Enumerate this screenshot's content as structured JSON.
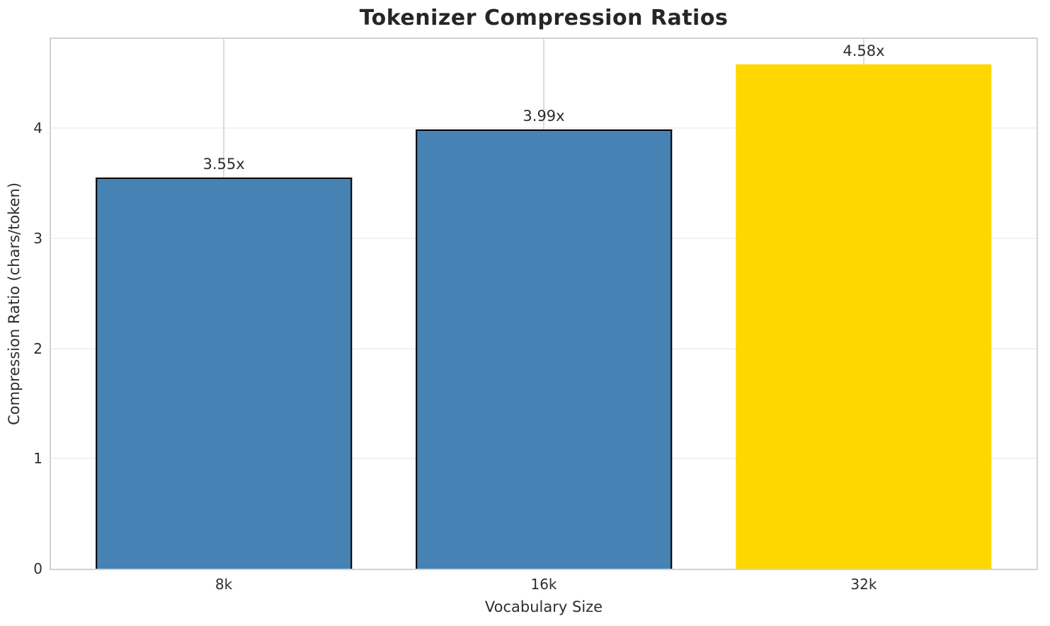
{
  "title": "Tokenizer Compression Ratios",
  "chart_data": {
    "type": "bar",
    "title": "Tokenizer Compression Ratios",
    "xlabel": "Vocabulary Size",
    "ylabel": "Compression Ratio (chars/token)",
    "categories": [
      "8k",
      "16k",
      "32k"
    ],
    "values": [
      3.55,
      3.99,
      4.58
    ],
    "bar_labels": [
      "3.55x",
      "3.99x",
      "4.58x"
    ],
    "bar_colors": [
      "#4682B4",
      "#4682B4",
      "#FFD700"
    ],
    "bar_edge_colors": [
      "#000000",
      "#000000",
      "none"
    ],
    "yticks": [
      0,
      1,
      2,
      3,
      4
    ],
    "ylim": [
      0,
      4.81
    ],
    "grid": "both",
    "legend_position": "none",
    "colors": {
      "accent_blue": "#4682B4",
      "accent_gold": "#FFD700",
      "grid_vertical": "#dcdcdc",
      "grid_horizontal": "#f2f2f2",
      "spine": "#d2d2d2",
      "text": "#2e2e2e",
      "title_text": "#262626"
    }
  }
}
